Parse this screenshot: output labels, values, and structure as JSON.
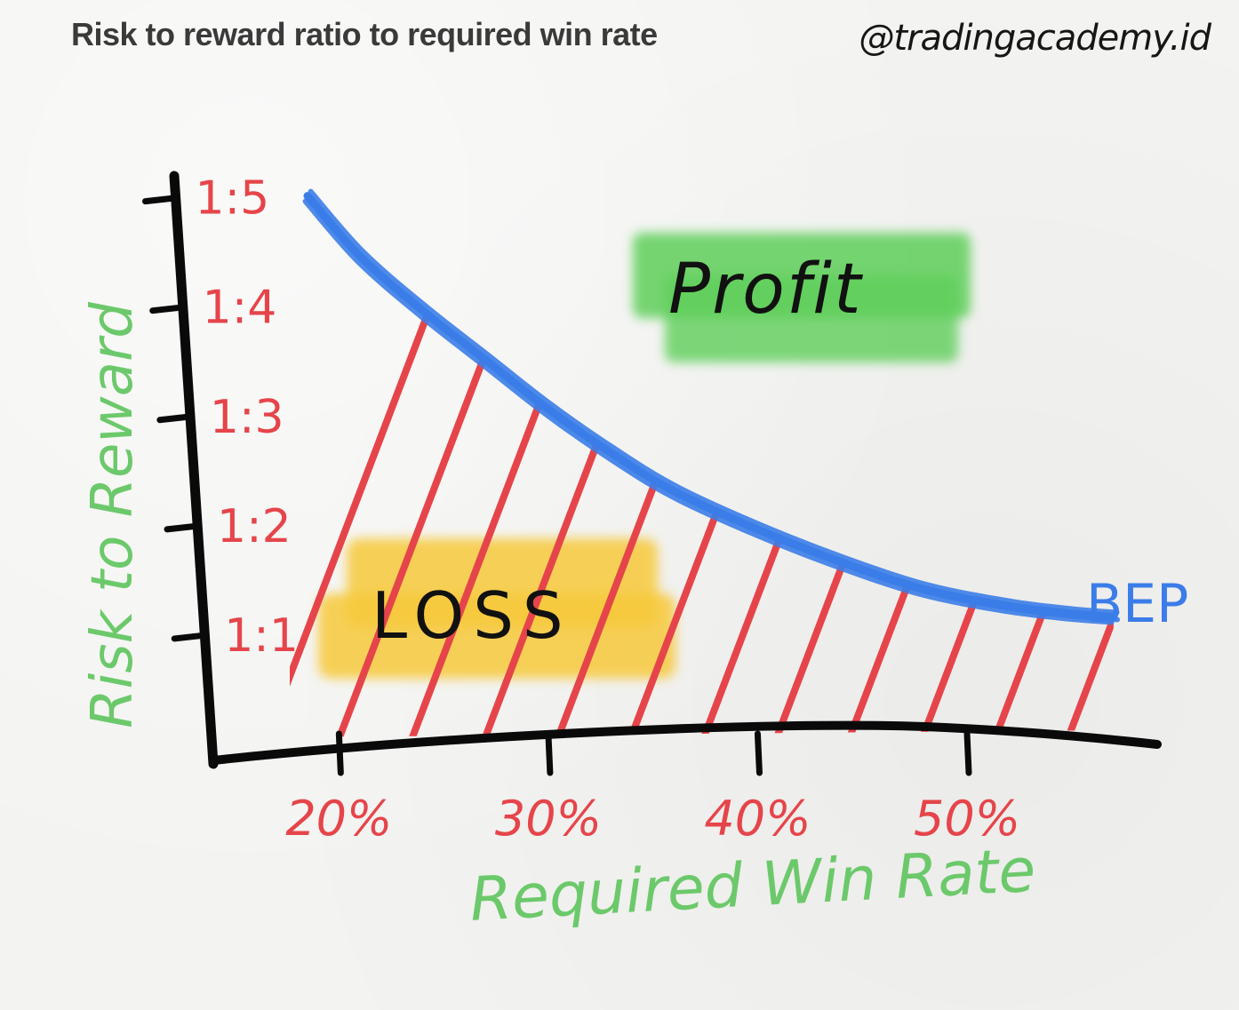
{
  "header": {
    "title": "Risk to reward ratio to required win rate",
    "brand": "@tradingacademy.id"
  },
  "colors": {
    "curve": "#3b7de8",
    "hatch": "#e5454a",
    "axis": "#0a0a0a",
    "tick_labels": "#e5454a",
    "axis_titles": "#6cc96b",
    "profit_highlight": "#5fcf5a",
    "loss_highlight": "#f7c93b",
    "region_text": "#111111"
  },
  "chart_data": {
    "type": "line",
    "title": "Risk to reward ratio to required win rate",
    "xlabel": "Required Win Rate",
    "ylabel": "Risk to Reward",
    "x_tick_labels": [
      "20%",
      "30%",
      "40%",
      "50%"
    ],
    "x_ticks": [
      20,
      30,
      40,
      50
    ],
    "y_tick_labels": [
      "1:1",
      "1:2",
      "1:3",
      "1:4",
      "1:5"
    ],
    "y_ticks": [
      1,
      2,
      3,
      4,
      5
    ],
    "xlim": [
      14,
      59
    ],
    "ylim": [
      0,
      5.2
    ],
    "series": [
      {
        "name": "BEP",
        "x": [
          18.5,
          21,
          24,
          27,
          30,
          33,
          36,
          40,
          44,
          48,
          52,
          55,
          57
        ],
        "y": [
          5.0,
          4.45,
          3.95,
          3.5,
          3.05,
          2.65,
          2.3,
          1.95,
          1.65,
          1.4,
          1.25,
          1.18,
          1.15
        ]
      }
    ],
    "regions": [
      {
        "label": "Profit",
        "position": "above curve"
      },
      {
        "label": "LOSS",
        "position": "below curve"
      }
    ],
    "grid": false,
    "legend": "none"
  }
}
